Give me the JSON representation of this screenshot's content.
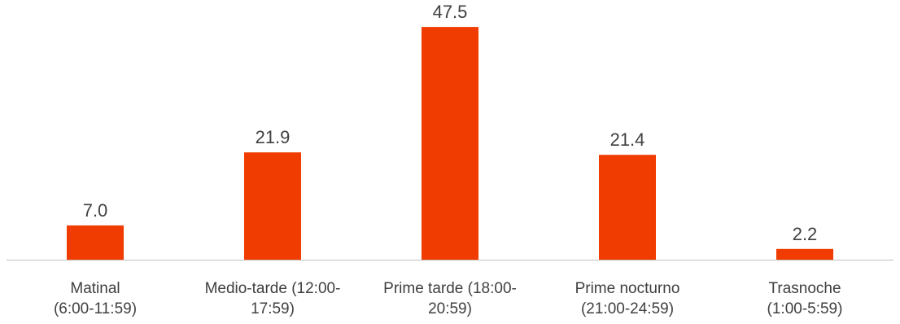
{
  "chart_data": {
    "type": "bar",
    "title": "",
    "xlabel": "",
    "ylabel": "",
    "categories": [
      [
        "Matinal",
        "(6:00-11:59)"
      ],
      [
        "Medio-tarde (12:00-",
        "17:59)"
      ],
      [
        "Prime tarde (18:00-",
        "20:59)"
      ],
      [
        "Prime nocturno",
        "(21:00-24:59)"
      ],
      [
        "Trasnoche",
        "(1:00-5:59)"
      ]
    ],
    "values": [
      7.0,
      21.9,
      47.5,
      21.4,
      2.2
    ],
    "value_labels": [
      "7.0",
      "21.9",
      "47.5",
      "21.4",
      "2.2"
    ],
    "ylim": [
      0,
      50
    ],
    "grid": false,
    "legend": "none",
    "colors": {
      "bar": "#F03C00",
      "axis": "#BFBFBF",
      "text": "#404040"
    }
  }
}
